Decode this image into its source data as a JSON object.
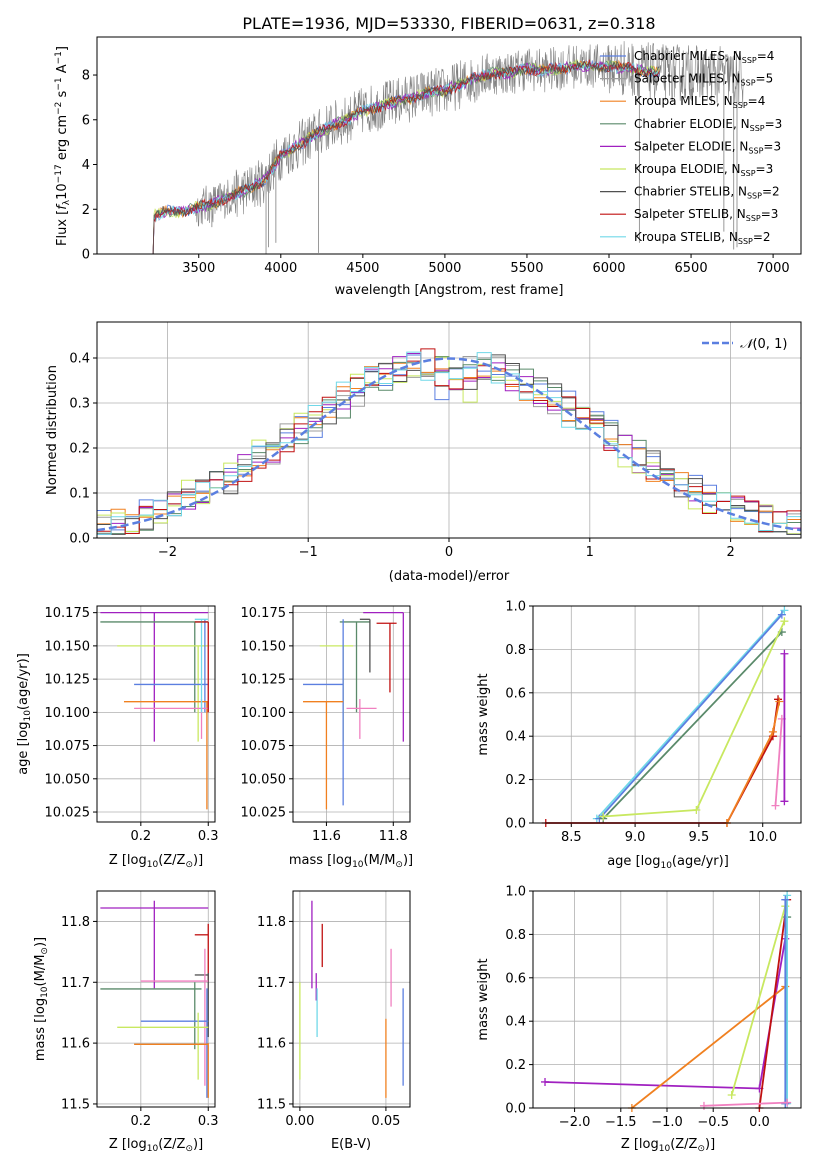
{
  "title": "PLATE=1936, MJD=53330, FIBERID=0631, z=0.318",
  "colors": {
    "chab_miles": "#5b7fe0",
    "salp_miles": "#9e9e9e",
    "krou_miles": "#f08020",
    "chab_elodie": "#5a8a6a",
    "salp_elodie": "#a020c0",
    "krou_elodie": "#c8e860",
    "chab_stelib": "#505050",
    "salp_stelib": "#c01010",
    "krou_stelib": "#70d8e8",
    "pink": "#f080c0",
    "normal": "#5b7fe0"
  },
  "chart_data": [
    {
      "type": "line",
      "xlabel": "wavelength [Angstrom, rest frame]",
      "ylabel_parts": [
        "Flux [",
        "f",
        "λ",
        "10",
        "−17",
        " erg cm",
        "−2",
        " s",
        "−1",
        " A",
        "−1",
        "]"
      ],
      "xlim": [
        2880,
        7170
      ],
      "ylim": [
        0,
        9.7
      ],
      "xticks": [
        "3500",
        "4000",
        "4500",
        "5000",
        "5500",
        "6000",
        "6500",
        "7000"
      ],
      "yticks": [
        "0",
        "2",
        "4",
        "6",
        "8"
      ],
      "legend": [
        {
          "pre": "Chabrier MILES, N",
          "sub": "SSP",
          "post": "=4",
          "color": "chab_miles"
        },
        {
          "pre": "Salpeter MILES, N",
          "sub": "SSP",
          "post": "=5",
          "color": "salp_miles"
        },
        {
          "pre": "Kroupa MILES, N",
          "sub": "SSP",
          "post": "=4",
          "color": "krou_miles"
        },
        {
          "pre": "Chabrier ELODIE, N",
          "sub": "SSP",
          "post": "=3",
          "color": "chab_elodie"
        },
        {
          "pre": "Salpeter ELODIE, N",
          "sub": "SSP",
          "post": "=3",
          "color": "salp_elodie"
        },
        {
          "pre": "Kroupa ELODIE, N",
          "sub": "SSP",
          "post": "=3",
          "color": "krou_elodie"
        },
        {
          "pre": "Chabrier STELIB, N",
          "sub": "SSP",
          "post": "=2",
          "color": "chab_stelib"
        },
        {
          "pre": "Salpeter STELIB, N",
          "sub": "SSP",
          "post": "=3",
          "color": "salp_stelib"
        },
        {
          "pre": "Kroupa STELIB, N",
          "sub": "SSP",
          "post": "=2",
          "color": "krou_stelib"
        }
      ],
      "continuum": [
        [
          3200,
          0.2
        ],
        [
          3230,
          1.7
        ],
        [
          3300,
          1.9
        ],
        [
          3400,
          1.9
        ],
        [
          3500,
          2.1
        ],
        [
          3600,
          2.3
        ],
        [
          3700,
          2.6
        ],
        [
          3800,
          2.9
        ],
        [
          3900,
          3.3
        ],
        [
          4000,
          4.4
        ],
        [
          4100,
          4.8
        ],
        [
          4200,
          5.3
        ],
        [
          4300,
          5.7
        ],
        [
          4400,
          6.0
        ],
        [
          4500,
          6.4
        ],
        [
          4600,
          6.6
        ],
        [
          4700,
          6.8
        ],
        [
          4800,
          7.0
        ],
        [
          4900,
          7.2
        ],
        [
          5000,
          7.3
        ],
        [
          5100,
          7.6
        ],
        [
          5200,
          7.9
        ],
        [
          5300,
          8.1
        ],
        [
          5400,
          8.1
        ],
        [
          5500,
          8.3
        ],
        [
          5600,
          8.2
        ],
        [
          5700,
          8.3
        ],
        [
          5800,
          8.4
        ],
        [
          5900,
          8.4
        ],
        [
          6000,
          8.4
        ],
        [
          6100,
          8.3
        ],
        [
          6200,
          8.2
        ],
        [
          6300,
          8.1
        ],
        [
          6400,
          8.1
        ],
        [
          6500,
          8.1
        ],
        [
          6600,
          8.0
        ],
        [
          6700,
          8.0
        ],
        [
          6800,
          7.8
        ]
      ],
      "model_range": [
        3210,
        6310
      ]
    },
    {
      "type": "histogram",
      "xlabel": "(data-model)/error",
      "ylabel": "Normed distribution",
      "xlim": [
        -2.5,
        2.5
      ],
      "ylim": [
        0,
        0.48
      ],
      "xticks": [
        "−2",
        "−1",
        "0",
        "1",
        "2"
      ],
      "xtick_values": [
        -2,
        -1,
        0,
        1,
        2
      ],
      "yticks": [
        "0.0",
        "0.1",
        "0.2",
        "0.3",
        "0.4"
      ],
      "legend_label_parts": [
        "𝒩",
        "(0, 1)"
      ],
      "normal_curve": {
        "mean": 0,
        "sigma": 1
      }
    },
    {
      "type": "scatter",
      "xlabel_parts": [
        "Z [log",
        "10",
        "(Z/Z",
        "⊙",
        ")]"
      ],
      "ylabel_parts": [
        "age  [log",
        "10",
        "(age/yr)]"
      ],
      "xlim": [
        0.135,
        0.31
      ],
      "ylim": [
        10.0175,
        10.18
      ],
      "xticks": [
        "0.2",
        "0.3"
      ],
      "xtick_values": [
        0.2,
        0.3
      ],
      "yticks": [
        "10.025",
        "10.050",
        "10.075",
        "10.100",
        "10.125",
        "10.150",
        "10.175"
      ],
      "ytick_values": [
        10.025,
        10.05,
        10.075,
        10.1,
        10.125,
        10.15,
        10.175
      ],
      "points": [
        {
          "c": "salp_elodie",
          "x": [
            0.14,
            0.3
          ],
          "y": [
            10.175,
            10.175
          ],
          "vx": 0.22,
          "vy": [
            10.078,
            10.175
          ]
        },
        {
          "c": "chab_elodie",
          "x": [
            0.14,
            0.3
          ],
          "y": [
            10.168,
            10.168
          ],
          "vx": 0.28,
          "vy": [
            10.1,
            10.168
          ]
        },
        {
          "c": "krou_elodie",
          "x": [
            0.165,
            0.3
          ],
          "y": [
            10.15,
            10.15
          ],
          "vx": 0.285,
          "vy": [
            10.078,
            10.15
          ]
        },
        {
          "c": "chab_miles",
          "x": [
            0.19,
            0.3
          ],
          "y": [
            10.121,
            10.121
          ],
          "vx": 0.295,
          "vy": [
            10.1,
            10.17
          ]
        },
        {
          "c": "krou_miles",
          "x": [
            0.175,
            0.3
          ],
          "y": [
            10.108,
            10.108
          ],
          "vx": 0.298,
          "vy": [
            10.027,
            10.108
          ]
        },
        {
          "c": "pink",
          "x": [
            0.19,
            0.3
          ],
          "y": [
            10.103,
            10.103
          ],
          "vx": 0.29,
          "vy": [
            10.08,
            10.11
          ]
        },
        {
          "c": "krou_stelib",
          "x": [
            0.28,
            0.3
          ],
          "y": [
            10.17,
            10.17
          ],
          "vx": 0.29,
          "vy": [
            10.1,
            10.17
          ]
        },
        {
          "c": "salp_stelib",
          "x": [
            0.28,
            0.3
          ],
          "y": [
            10.168,
            10.168
          ],
          "vx": 0.3,
          "vy": [
            10.1,
            10.168
          ]
        }
      ]
    },
    {
      "type": "scatter",
      "xlabel_parts": [
        "mass [log",
        "10",
        "(M/M",
        "⊙",
        ")]"
      ],
      "ylabel_parts": [],
      "xlim": [
        11.5,
        11.85
      ],
      "ylim": [
        10.0175,
        10.18
      ],
      "xticks": [
        "11.6",
        "11.8"
      ],
      "xtick_values": [
        11.6,
        11.8
      ],
      "yticks": [
        "10.025",
        "10.050",
        "10.075",
        "10.100",
        "10.125",
        "10.150",
        "10.175"
      ],
      "ytick_values": [
        10.025,
        10.05,
        10.075,
        10.1,
        10.125,
        10.15,
        10.175
      ],
      "points": [
        {
          "c": "salp_elodie",
          "x": [
            11.71,
            11.83
          ],
          "y": [
            10.175,
            10.175
          ],
          "vx": 11.83,
          "vy": [
            10.078,
            10.175
          ]
        },
        {
          "c": "chab_elodie",
          "x": [
            11.64,
            11.73
          ],
          "y": [
            10.168,
            10.168
          ],
          "vx": 11.69,
          "vy": [
            10.1,
            10.168
          ]
        },
        {
          "c": "krou_elodie",
          "x": [
            11.58,
            11.68
          ],
          "y": [
            10.15,
            10.15
          ],
          "vx": 11.65,
          "vy": [
            10.078,
            10.15
          ]
        },
        {
          "c": "chab_miles",
          "x": [
            11.53,
            11.65
          ],
          "y": [
            10.121,
            10.121
          ],
          "vx": 11.65,
          "vy": [
            10.03,
            10.17
          ]
        },
        {
          "c": "krou_miles",
          "x": [
            11.53,
            11.65
          ],
          "y": [
            10.108,
            10.108
          ],
          "vx": 11.6,
          "vy": [
            10.027,
            10.108
          ]
        },
        {
          "c": "pink",
          "x": [
            11.66,
            11.75
          ],
          "y": [
            10.103,
            10.103
          ],
          "vx": 11.7,
          "vy": [
            10.08,
            10.11
          ]
        },
        {
          "c": "chab_stelib",
          "x": [
            11.7,
            11.73
          ],
          "y": [
            10.17,
            10.17
          ],
          "vx": 11.73,
          "vy": [
            10.13,
            10.17
          ]
        },
        {
          "c": "salp_stelib",
          "x": [
            11.75,
            11.81
          ],
          "y": [
            10.167,
            10.167
          ],
          "vx": 11.79,
          "vy": [
            10.115,
            10.167
          ]
        }
      ]
    },
    {
      "type": "line",
      "xlabel_parts": [
        "age  [log",
        "10",
        "(age/yr)]"
      ],
      "ylabel": "mass weight",
      "xlim": [
        8.2,
        10.3
      ],
      "ylim": [
        0,
        1
      ],
      "xticks": [
        "8.5",
        "9.0",
        "9.5",
        "10.0"
      ],
      "xtick_values": [
        8.5,
        9.0,
        9.5,
        10.0
      ],
      "yticks": [
        "0.0",
        "0.2",
        "0.4",
        "0.6",
        "0.8",
        "1.0"
      ],
      "ytick_values": [
        0,
        0.2,
        0.4,
        0.6,
        0.8,
        1.0
      ],
      "series": [
        {
          "c": "krou_stelib",
          "x": [
            8.7,
            10.17
          ],
          "y": [
            0.02,
            0.98
          ]
        },
        {
          "c": "chab_miles",
          "x": [
            8.72,
            10.15
          ],
          "y": [
            0.02,
            0.96
          ]
        },
        {
          "c": "chab_elodie",
          "x": [
            8.75,
            10.15
          ],
          "y": [
            0.02,
            0.88
          ]
        },
        {
          "c": "krou_elodie",
          "x": [
            8.75,
            9.48,
            10.17
          ],
          "y": [
            0.03,
            0.06,
            0.93
          ]
        },
        {
          "c": "salp_stelib",
          "x": [
            8.3,
            9.72,
            10.08,
            10.12
          ],
          "y": [
            0.0,
            0.0,
            0.4,
            0.57
          ]
        },
        {
          "c": "krou_miles",
          "x": [
            9.72,
            10.08,
            10.13
          ],
          "y": [
            0.0,
            0.42,
            0.56
          ]
        },
        {
          "c": "pink",
          "x": [
            10.1,
            10.15
          ],
          "y": [
            0.08,
            0.48
          ]
        },
        {
          "c": "salp_elodie",
          "x": [
            10.17,
            10.17
          ],
          "y": [
            0.1,
            0.78
          ]
        }
      ]
    },
    {
      "type": "scatter",
      "xlabel_parts": [
        "Z [log",
        "10",
        "(Z/Z",
        "⊙",
        ")]"
      ],
      "ylabel_parts": [
        "mass [log",
        "10",
        "(M/M",
        "⊙",
        ")]"
      ],
      "xlim": [
        0.135,
        0.31
      ],
      "ylim": [
        11.495,
        11.85
      ],
      "xticks": [
        "0.2",
        "0.3"
      ],
      "xtick_values": [
        0.2,
        0.3
      ],
      "yticks": [
        "11.5",
        "11.6",
        "11.7",
        "11.8"
      ],
      "ytick_values": [
        11.5,
        11.6,
        11.7,
        11.8
      ],
      "points": [
        {
          "c": "salp_elodie",
          "x": [
            0.14,
            0.3
          ],
          "y": [
            11.822,
            11.822
          ],
          "vx": 0.22,
          "vy": [
            11.69,
            11.834
          ]
        },
        {
          "c": "salp_stelib",
          "x": [
            0.28,
            0.3
          ],
          "y": [
            11.778,
            11.778
          ],
          "vx": 0.3,
          "vy": [
            11.7,
            11.796
          ]
        },
        {
          "c": "chab_stelib",
          "x": [
            0.28,
            0.3
          ],
          "y": [
            11.712,
            11.712
          ],
          "vx": 0.3,
          "vy": [
            11.61,
            11.715
          ]
        },
        {
          "c": "pink",
          "x": [
            0.2,
            0.3
          ],
          "y": [
            11.702,
            11.702
          ],
          "vx": 0.295,
          "vy": [
            11.53,
            11.755
          ]
        },
        {
          "c": "chab_elodie",
          "x": [
            0.14,
            0.29
          ],
          "y": [
            11.689,
            11.689
          ],
          "vx": 0.28,
          "vy": [
            11.59,
            11.7
          ]
        },
        {
          "c": "chab_miles",
          "x": [
            0.2,
            0.3
          ],
          "y": [
            11.636,
            11.636
          ],
          "vx": 0.298,
          "vy": [
            11.51,
            11.69
          ]
        },
        {
          "c": "krou_elodie",
          "x": [
            0.165,
            0.3
          ],
          "y": [
            11.626,
            11.626
          ],
          "vx": 0.285,
          "vy": [
            11.54,
            11.65
          ]
        },
        {
          "c": "krou_miles",
          "x": [
            0.19,
            0.3
          ],
          "y": [
            11.598,
            11.598
          ],
          "vx": 0.3,
          "vy": [
            11.51,
            11.6
          ]
        }
      ]
    },
    {
      "type": "scatter",
      "xlabel": "E(B-V)",
      "ylabel_parts": [],
      "xlim": [
        -0.004,
        0.064
      ],
      "ylim": [
        11.495,
        11.85
      ],
      "xticks": [
        "0.00",
        "0.05"
      ],
      "xtick_values": [
        0.0,
        0.05
      ],
      "yticks": [
        "11.5",
        "11.6",
        "11.7",
        "11.8"
      ],
      "ytick_values": [
        11.5,
        11.6,
        11.7,
        11.8
      ],
      "points": [
        {
          "c": "krou_elodie",
          "vx": 0.0,
          "vy": [
            11.54,
            11.7
          ]
        },
        {
          "c": "salp_elodie",
          "vx": 0.007,
          "vy": [
            11.69,
            11.834
          ]
        },
        {
          "c": "salp_elodie",
          "vx": 0.0095,
          "vy": [
            11.67,
            11.715
          ]
        },
        {
          "c": "krou_stelib",
          "vx": 0.01,
          "vy": [
            11.61,
            11.69
          ]
        },
        {
          "c": "salp_stelib",
          "vx": 0.013,
          "vy": [
            11.725,
            11.796
          ]
        },
        {
          "c": "krou_miles",
          "vx": 0.05,
          "vy": [
            11.51,
            11.64
          ]
        },
        {
          "c": "pink",
          "vx": 0.053,
          "vy": [
            11.66,
            11.755
          ]
        },
        {
          "c": "chab_miles",
          "vx": 0.06,
          "vy": [
            11.53,
            11.69
          ]
        }
      ]
    },
    {
      "type": "line",
      "xlabel_parts": [
        "Z [log",
        "10",
        "(Z/Z",
        "⊙",
        ")]"
      ],
      "ylabel": "mass weight",
      "xlim": [
        -2.45,
        0.45
      ],
      "ylim": [
        0,
        1
      ],
      "xticks": [
        "−2.0",
        "−1.5",
        "−1.0",
        "−0.5",
        "0.0"
      ],
      "xtick_values": [
        -2.0,
        -1.5,
        -1.0,
        -0.5,
        0.0
      ],
      "yticks": [
        "0.0",
        "0.2",
        "0.4",
        "0.6",
        "0.8",
        "1.0"
      ],
      "ytick_values": [
        0,
        0.2,
        0.4,
        0.6,
        0.8,
        1.0
      ],
      "series": [
        {
          "c": "salp_elodie",
          "x": [
            -2.32,
            0.0,
            0.28
          ],
          "y": [
            0.12,
            0.09,
            0.78
          ]
        },
        {
          "c": "krou_miles",
          "x": [
            -1.38,
            0.28
          ],
          "y": [
            0.0,
            0.56
          ]
        },
        {
          "c": "krou_elodie",
          "x": [
            -0.3,
            0.28
          ],
          "y": [
            0.06,
            0.93
          ]
        },
        {
          "c": "salp_stelib",
          "x": [
            0.0,
            0.3
          ],
          "y": [
            0.0,
            0.96
          ]
        },
        {
          "c": "chab_elodie",
          "x": [
            0.28,
            0.3
          ],
          "y": [
            0.02,
            0.88
          ]
        },
        {
          "c": "krou_stelib",
          "x": [
            0.3,
            0.3
          ],
          "y": [
            0.02,
            0.98
          ]
        },
        {
          "c": "chab_miles",
          "x": [
            0.28,
            0.28
          ],
          "y": [
            0.02,
            0.96
          ]
        },
        {
          "c": "pink",
          "x": [
            -0.6,
            0.3
          ],
          "y": [
            0.01,
            0.025
          ]
        }
      ]
    }
  ]
}
